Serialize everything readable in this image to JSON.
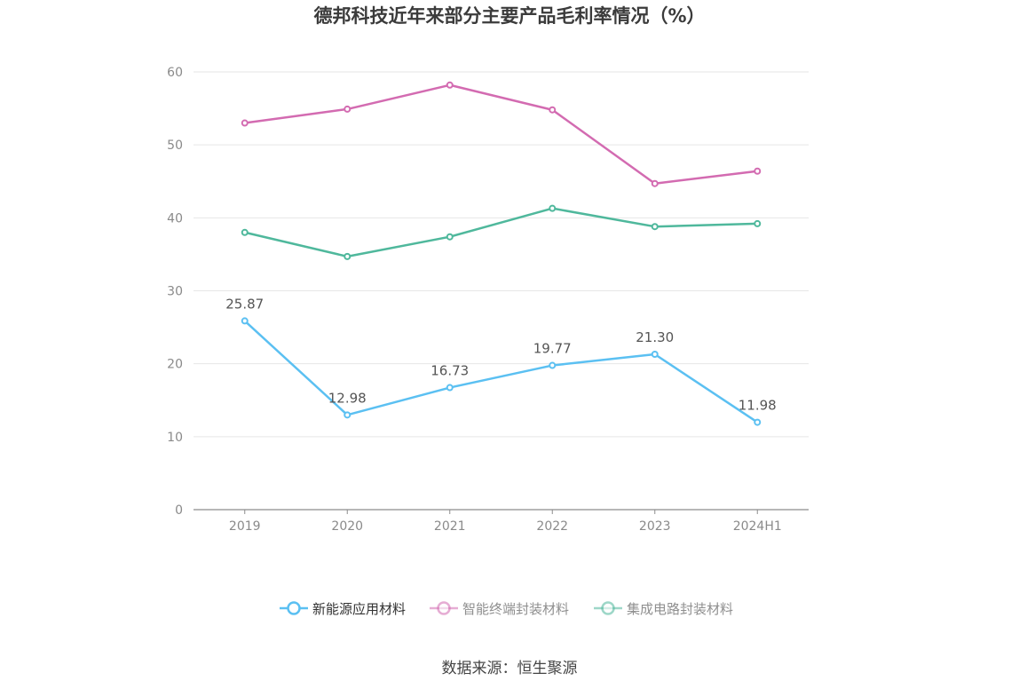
{
  "title": "德邦科技近年来部分主要产品毛利率情况（%）",
  "source": "数据来源：恒生聚源",
  "chart_data": {
    "type": "line",
    "title": "德邦科技近年来部分主要产品毛利率情况（%）",
    "categories": [
      "2019",
      "2020",
      "2021",
      "2022",
      "2023",
      "2024H1"
    ],
    "ylim": [
      0,
      60
    ],
    "yticks": [
      0,
      10,
      20,
      30,
      40,
      50,
      60
    ],
    "grid": true,
    "legend_position": "bottom",
    "series": [
      {
        "name": "新能源应用材料",
        "color": "#5bc0f2",
        "show_labels": true,
        "active": true,
        "values": [
          25.87,
          12.98,
          16.73,
          19.77,
          21.3,
          11.98
        ]
      },
      {
        "name": "智能终端封装材料",
        "color": "#d36bb1",
        "show_labels": false,
        "active": false,
        "values": [
          53.0,
          54.9,
          58.2,
          54.8,
          44.7,
          46.4
        ]
      },
      {
        "name": "集成电路封装材料",
        "color": "#4fb89c",
        "show_labels": false,
        "active": false,
        "values": [
          38.0,
          34.7,
          37.4,
          41.3,
          38.8,
          39.2
        ]
      }
    ]
  }
}
